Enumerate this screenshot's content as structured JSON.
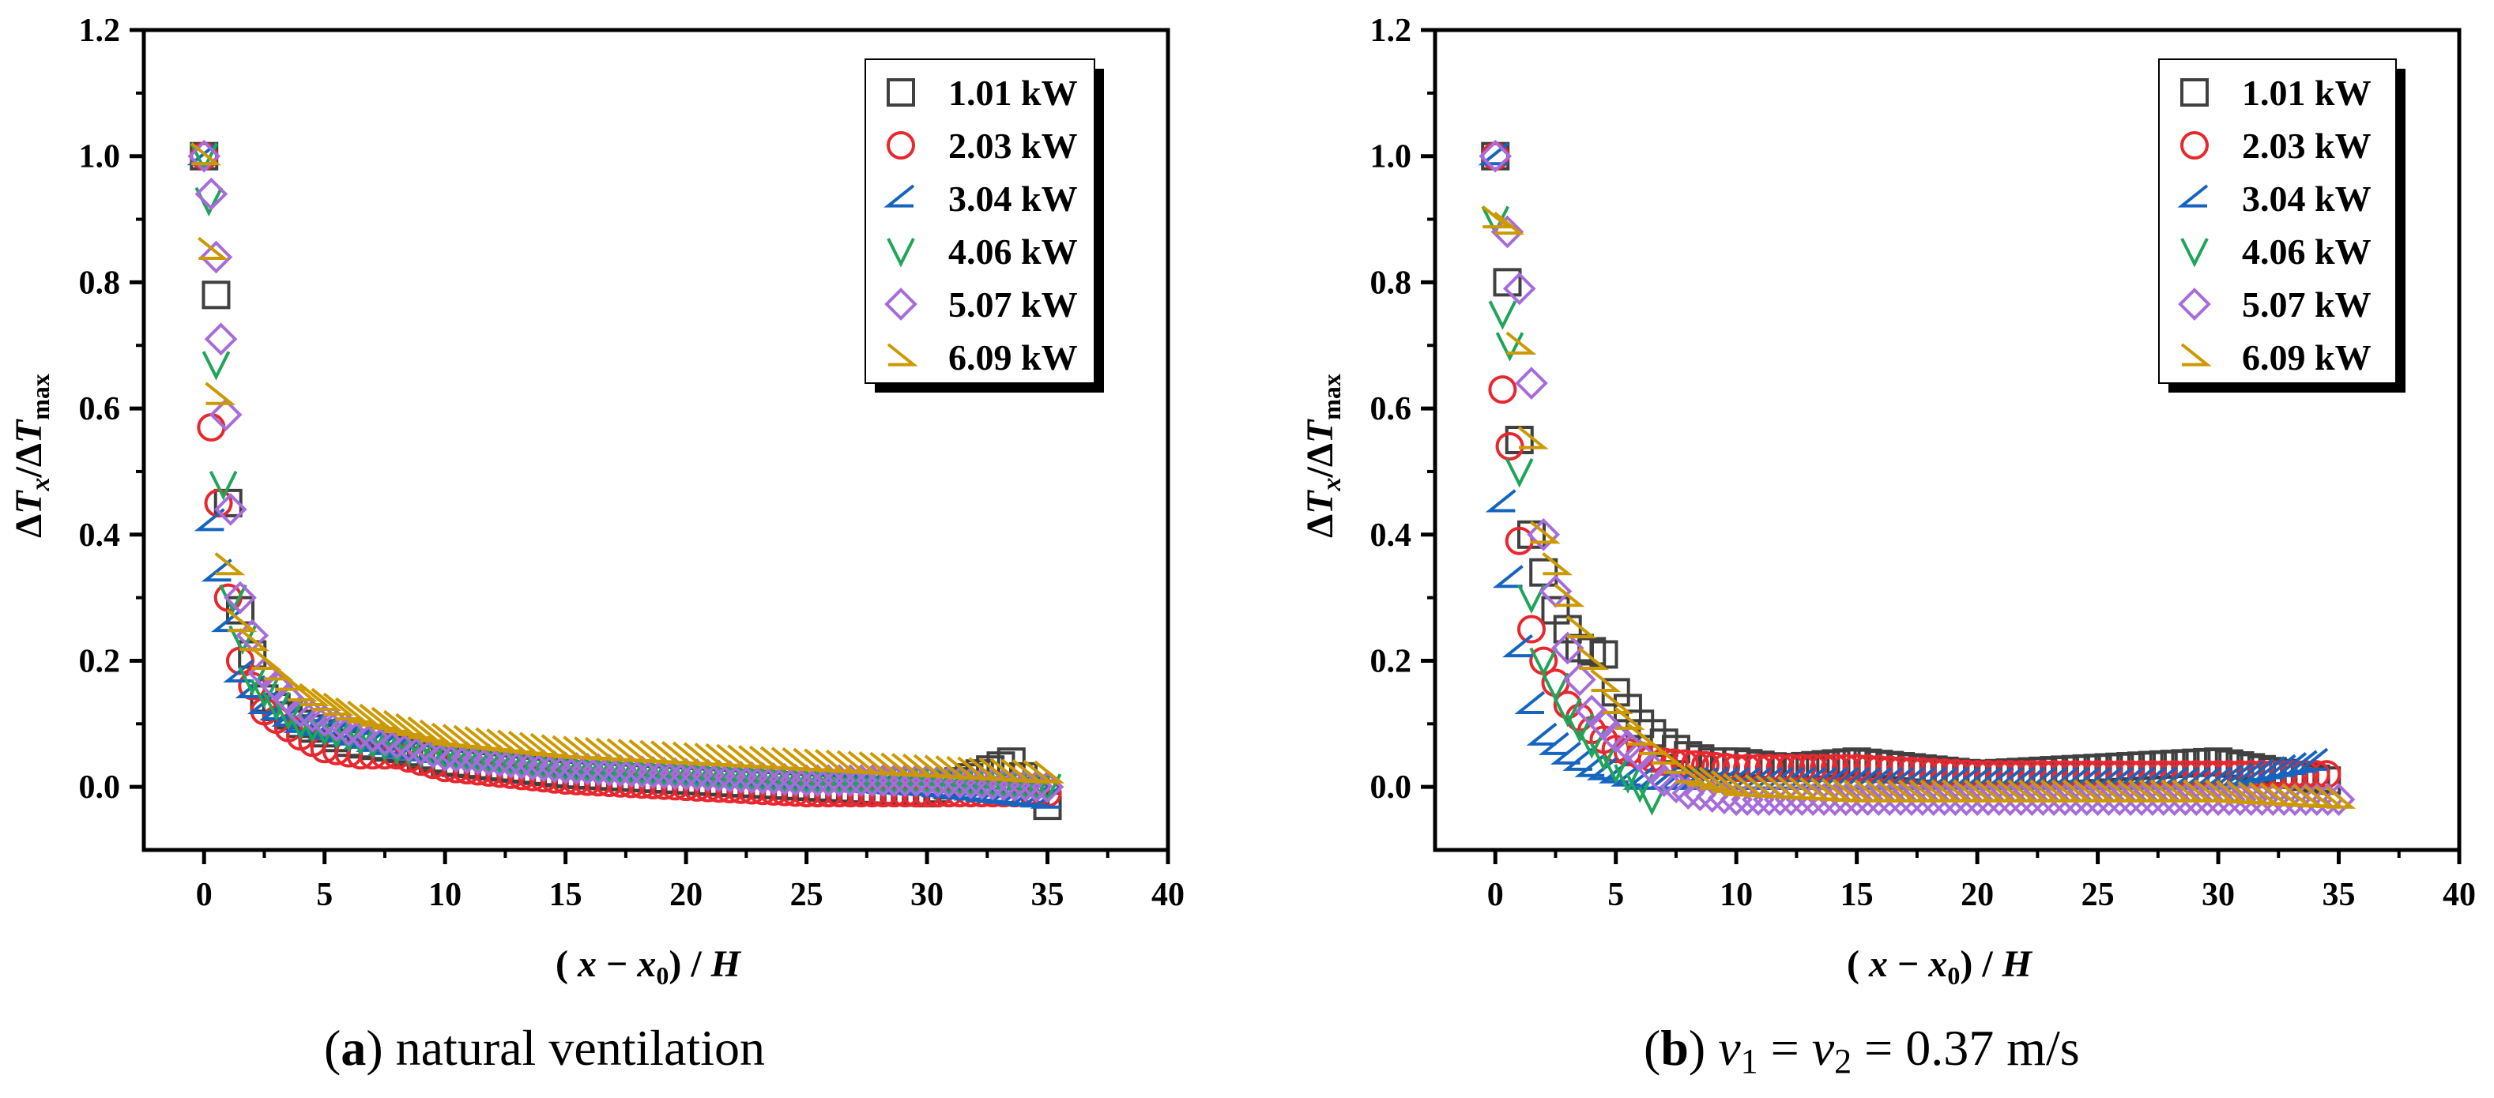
{
  "figure": {
    "colors": {
      "axis": "#000000",
      "s1": "#404040",
      "s2": "#e8272e",
      "s3": "#1565c0",
      "s4": "#1fa55a",
      "s5": "#a66cd9",
      "s6": "#cc9900"
    },
    "captions": [
      {
        "letter": "a",
        "open": "(",
        "close": ")",
        "text": "natural ventilation"
      },
      {
        "letter": "b",
        "open": "(",
        "close": ")",
        "v1": "v",
        "sub1": "1",
        "eq1": " = ",
        "v2": "v",
        "sub2": "2",
        "eq2": " = 0.37 m/s"
      }
    ]
  },
  "chart_data": [
    {
      "type": "scatter",
      "panel": "a",
      "ylabel_parts": {
        "delta1": "Δ",
        "t1": "T",
        "sub1": "x",
        "slash": "/Δ",
        "t2": "T",
        "sub2": "max"
      },
      "xlabel_parts": {
        "open": "( ",
        "x": "x",
        "minus": " − ",
        "x0": "x",
        "sub0": "0",
        "close": ") / ",
        "h": "H"
      },
      "xlim": [
        -2.5,
        40
      ],
      "ylim": [
        -0.1,
        1.2
      ],
      "xticks": [
        "0",
        "5",
        "10",
        "15",
        "20",
        "25",
        "30",
        "35",
        "40"
      ],
      "yticks": [
        "0.0",
        "0.2",
        "0.4",
        "0.6",
        "0.8",
        "1.0",
        "1.2"
      ],
      "legend_position": "top-right",
      "series": [
        {
          "name": "1.01 kW",
          "marker": "square",
          "color": "#404040",
          "x": [
            0,
            0.5,
            1,
            1.5,
            2.5,
            4,
            6,
            8,
            10,
            15,
            20,
            25,
            30,
            33.5,
            35
          ],
          "y": [
            1.0,
            0.78,
            0.45,
            0.28,
            0.14,
            0.1,
            0.07,
            0.06,
            0.04,
            0.02,
            0.01,
            0.0,
            -0.01,
            0.04,
            -0.03
          ]
        },
        {
          "name": "2.03 kW",
          "marker": "circle",
          "color": "#e8272e",
          "x": [
            0,
            0.3,
            0.6,
            1,
            1.5,
            2.5,
            4,
            5,
            6.5,
            8,
            10,
            15,
            20,
            25,
            30,
            35
          ],
          "y": [
            1.0,
            0.57,
            0.45,
            0.3,
            0.2,
            0.12,
            0.08,
            0.06,
            0.05,
            0.05,
            0.03,
            0.01,
            0.0,
            -0.01,
            -0.01,
            -0.01
          ]
        },
        {
          "name": "3.04 kW",
          "marker": "tri-left",
          "color": "#1565c0",
          "x": [
            0,
            0.3,
            0.6,
            1,
            1.5,
            2.5,
            4,
            6,
            8,
            10,
            15,
            20,
            25,
            30,
            35
          ],
          "y": [
            1.0,
            0.42,
            0.34,
            0.26,
            0.18,
            0.13,
            0.1,
            0.08,
            0.06,
            0.05,
            0.03,
            0.02,
            0.01,
            0.0,
            -0.02
          ]
        },
        {
          "name": "4.06 kW",
          "marker": "tri-down",
          "color": "#1fa55a",
          "x": [
            0,
            0.2,
            0.5,
            0.8,
            1.2,
            2,
            3,
            4,
            6,
            8,
            10,
            15,
            20,
            25,
            30,
            35
          ],
          "y": [
            1.0,
            0.93,
            0.67,
            0.48,
            0.3,
            0.17,
            0.13,
            0.1,
            0.08,
            0.06,
            0.05,
            0.03,
            0.02,
            0.01,
            0.01,
            0.0
          ]
        },
        {
          "name": "5.07 kW",
          "marker": "diamond",
          "color": "#a66cd9",
          "x": [
            0,
            0.3,
            0.5,
            0.7,
            0.9,
            1.1,
            1.5,
            2.5,
            4,
            6,
            8,
            10,
            15,
            20,
            25,
            30,
            35
          ],
          "y": [
            1.0,
            0.94,
            0.84,
            0.71,
            0.59,
            0.44,
            0.3,
            0.18,
            0.12,
            0.09,
            0.07,
            0.05,
            0.03,
            0.02,
            0.01,
            0.01,
            0.0
          ]
        },
        {
          "name": "6.09 kW",
          "marker": "tri-right",
          "color": "#cc9900",
          "x": [
            0,
            0.3,
            0.6,
            1,
            1.5,
            2.5,
            4,
            6,
            8,
            10,
            15,
            20,
            25,
            30,
            35
          ],
          "y": [
            1.0,
            0.85,
            0.62,
            0.35,
            0.26,
            0.2,
            0.15,
            0.12,
            0.1,
            0.08,
            0.06,
            0.05,
            0.04,
            0.03,
            0.02
          ]
        }
      ]
    },
    {
      "type": "scatter",
      "panel": "b",
      "ylabel_parts": {
        "delta1": "Δ",
        "t1": "T",
        "sub1": "x",
        "slash": "/Δ",
        "t2": "T",
        "sub2": "max"
      },
      "xlabel_parts": {
        "open": "( ",
        "x": "x",
        "minus": " − ",
        "x0": "x",
        "sub0": "0",
        "close": ") / ",
        "h": "H"
      },
      "xlim": [
        -2.5,
        40
      ],
      "ylim": [
        -0.1,
        1.2
      ],
      "xticks": [
        "0",
        "5",
        "10",
        "15",
        "20",
        "25",
        "30",
        "35",
        "40"
      ],
      "yticks": [
        "0.0",
        "0.2",
        "0.4",
        "0.6",
        "0.8",
        "1.0",
        "1.2"
      ],
      "legend_position": "top-right",
      "series": [
        {
          "name": "1.01 kW",
          "marker": "square",
          "color": "#404040",
          "x": [
            0,
            0.5,
            1,
            1.5,
            2.5,
            3.5,
            4.5,
            5,
            6,
            7,
            8,
            9,
            10,
            12,
            15,
            20,
            25,
            30,
            34.5
          ],
          "y": [
            1.0,
            0.8,
            0.55,
            0.4,
            0.28,
            0.22,
            0.21,
            0.15,
            0.1,
            0.07,
            0.05,
            0.04,
            0.04,
            0.03,
            0.04,
            0.02,
            0.03,
            0.04,
            0.01
          ]
        },
        {
          "name": "2.03 kW",
          "marker": "circle",
          "color": "#e8272e",
          "x": [
            0,
            0.3,
            0.6,
            1,
            1.5,
            2,
            3,
            4,
            5,
            7,
            10,
            15,
            20,
            25,
            30,
            34.5
          ],
          "y": [
            1.0,
            0.63,
            0.54,
            0.39,
            0.25,
            0.2,
            0.13,
            0.09,
            0.06,
            0.04,
            0.03,
            0.03,
            0.02,
            0.02,
            0.02,
            0.02
          ]
        },
        {
          "name": "3.04 kW",
          "marker": "tri-left",
          "color": "#1565c0",
          "x": [
            0,
            0.3,
            0.6,
            1,
            1.5,
            2,
            3,
            4,
            5,
            6,
            7,
            10,
            15,
            20,
            25,
            30,
            34
          ],
          "y": [
            1.0,
            0.45,
            0.33,
            0.22,
            0.13,
            0.08,
            0.05,
            0.03,
            0.02,
            0.01,
            0.01,
            0.01,
            0.01,
            0.01,
            0.01,
            0.01,
            0.04
          ]
        },
        {
          "name": "4.06 kW",
          "marker": "tri-down",
          "color": "#1fa55a",
          "x": [
            0,
            0.3,
            0.6,
            1,
            1.5,
            2,
            3,
            4,
            5,
            6,
            6.5
          ],
          "y": [
            0.9,
            0.75,
            0.7,
            0.5,
            0.3,
            0.2,
            0.12,
            0.07,
            0.03,
            0.0,
            -0.02
          ]
        },
        {
          "name": "5.07 kW",
          "marker": "diamond",
          "color": "#a66cd9",
          "x": [
            0,
            0.5,
            1,
            1.5,
            2,
            3,
            4,
            5,
            6,
            7,
            8,
            10,
            15,
            20,
            25,
            30,
            35
          ],
          "y": [
            1.0,
            0.88,
            0.79,
            0.64,
            0.4,
            0.22,
            0.12,
            0.08,
            0.05,
            0.01,
            -0.01,
            -0.02,
            -0.02,
            -0.02,
            -0.02,
            -0.02,
            -0.02
          ]
        },
        {
          "name": "6.09 kW",
          "marker": "tri-right",
          "color": "#cc9900",
          "x": [
            0,
            0.5,
            1,
            1.5,
            2,
            3,
            4,
            5,
            6,
            7,
            8,
            10,
            15,
            20,
            25,
            30,
            35
          ],
          "y": [
            0.9,
            0.89,
            0.7,
            0.55,
            0.4,
            0.3,
            0.2,
            0.13,
            0.08,
            0.05,
            0.02,
            0.0,
            -0.01,
            -0.01,
            -0.01,
            -0.01,
            -0.02
          ]
        }
      ]
    }
  ]
}
